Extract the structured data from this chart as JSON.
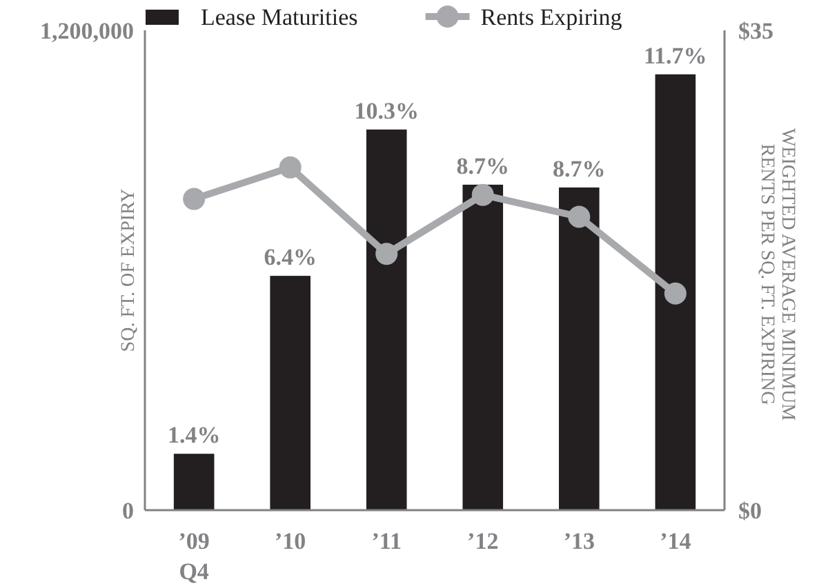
{
  "chart_data": {
    "type": "bar",
    "categories": [
      "’09\nQ4",
      "’10",
      "’11",
      "’12",
      "’13",
      "’14"
    ],
    "series": [
      {
        "name": "Lease Maturities",
        "color": "#231f20",
        "values": [
          141000,
          586000,
          952000,
          814000,
          807000,
          1090000
        ]
      },
      {
        "name": "Rents Expiring",
        "type": "line",
        "axis": "y2",
        "color": "#a7a9ac",
        "marker": "circle",
        "values": [
          22.7,
          25.0,
          18.7,
          23.0,
          21.4,
          15.8
        ]
      }
    ],
    "annotations": [
      {
        "text": "1.4%",
        "x": "’09\nQ4",
        "y": 141000
      },
      {
        "text": "6.4%",
        "x": "’10",
        "y": 586000
      },
      {
        "text": "10.3%",
        "x": "’11",
        "y": 952000
      },
      {
        "text": "8.7%",
        "x": "’12",
        "y": 814000
      },
      {
        "text": "8.7%",
        "x": "’13",
        "y": 807000
      },
      {
        "text": "11.7%",
        "x": "’14",
        "y": 1090000
      }
    ],
    "ylabel": "SQ. FT. OF EXPIRY",
    "y2label": "WEIGHTED AVERAGE MINIMUM\nRENTS PER SQ. FT. EXPIRING",
    "ylim": [
      0,
      1200000
    ],
    "yticks": [
      {
        "value": 0,
        "label": "0"
      },
      {
        "value": 1200000,
        "label": "1,200,000"
      }
    ],
    "y2lim": [
      0,
      35
    ],
    "y2ticks": [
      {
        "value": 0,
        "label": "$0"
      },
      {
        "value": 35,
        "label": "$35"
      }
    ],
    "grid": false,
    "legend": "top"
  }
}
